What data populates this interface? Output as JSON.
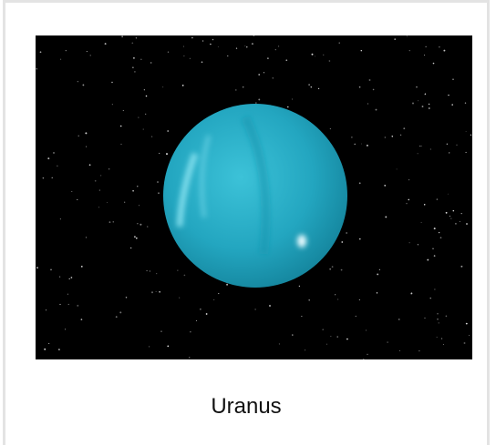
{
  "caption": "Uranus"
}
